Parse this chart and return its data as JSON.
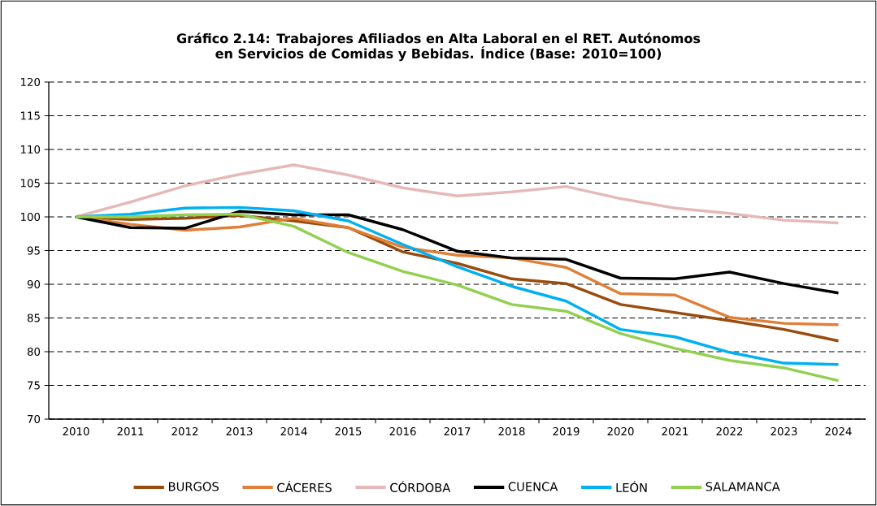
{
  "chart_data": {
    "type": "line",
    "title": "Gráfico 2.14: Trabajores Afiliados en Alta Laboral en el RET. Autónomos\nen Servicios de Comidas y Bebidas. Índice (Base: 2010=100)",
    "categories": [
      "2010",
      "2011",
      "2012",
      "2013",
      "2014",
      "2015",
      "2016",
      "2017",
      "2018",
      "2019",
      "2020",
      "2021",
      "2022",
      "2023",
      "2024"
    ],
    "series": [
      {
        "name": "BURGOS",
        "color": "#994c0e",
        "values": [
          100,
          99.6,
          99.8,
          100.2,
          99.4,
          98.4,
          94.8,
          93.1,
          90.8,
          90.1,
          87.0,
          85.8,
          84.6,
          83.3,
          81.6
        ]
      },
      {
        "name": "CÁCERES",
        "color": "#e07f37",
        "values": [
          100,
          98.9,
          98.0,
          98.5,
          99.8,
          98.4,
          95.5,
          94.3,
          93.9,
          92.5,
          88.6,
          88.4,
          85.1,
          84.2,
          84.0
        ]
      },
      {
        "name": "CÓRDOBA",
        "color": "#e6b9b8",
        "values": [
          100,
          102.2,
          104.6,
          106.3,
          107.7,
          106.2,
          104.3,
          103.1,
          103.7,
          104.5,
          102.7,
          101.3,
          100.5,
          99.5,
          99.1
        ]
      },
      {
        "name": "CUENCA",
        "color": "#000000",
        "values": [
          100,
          98.4,
          98.3,
          100.8,
          100.3,
          100.3,
          98.1,
          94.9,
          93.9,
          93.7,
          90.9,
          90.8,
          91.8,
          90.1,
          88.7
        ]
      },
      {
        "name": "LEÓN",
        "color": "#00b0f0",
        "values": [
          100,
          100.4,
          101.3,
          101.4,
          100.9,
          99.4,
          95.9,
          92.6,
          89.7,
          87.5,
          83.3,
          82.2,
          79.9,
          78.3,
          78.1
        ]
      },
      {
        "name": "SALAMANCA",
        "color": "#92d050",
        "values": [
          100,
          100.0,
          100.3,
          100.4,
          98.6,
          94.7,
          91.9,
          89.9,
          87.0,
          86.0,
          82.7,
          80.5,
          78.7,
          77.6,
          75.7
        ]
      }
    ],
    "ylim": [
      70,
      120
    ],
    "yticks": [
      70,
      75,
      80,
      85,
      90,
      95,
      100,
      105,
      110,
      115,
      120
    ],
    "grid": "y",
    "legend": "bottom",
    "marker": "none",
    "line_style": "solid"
  }
}
